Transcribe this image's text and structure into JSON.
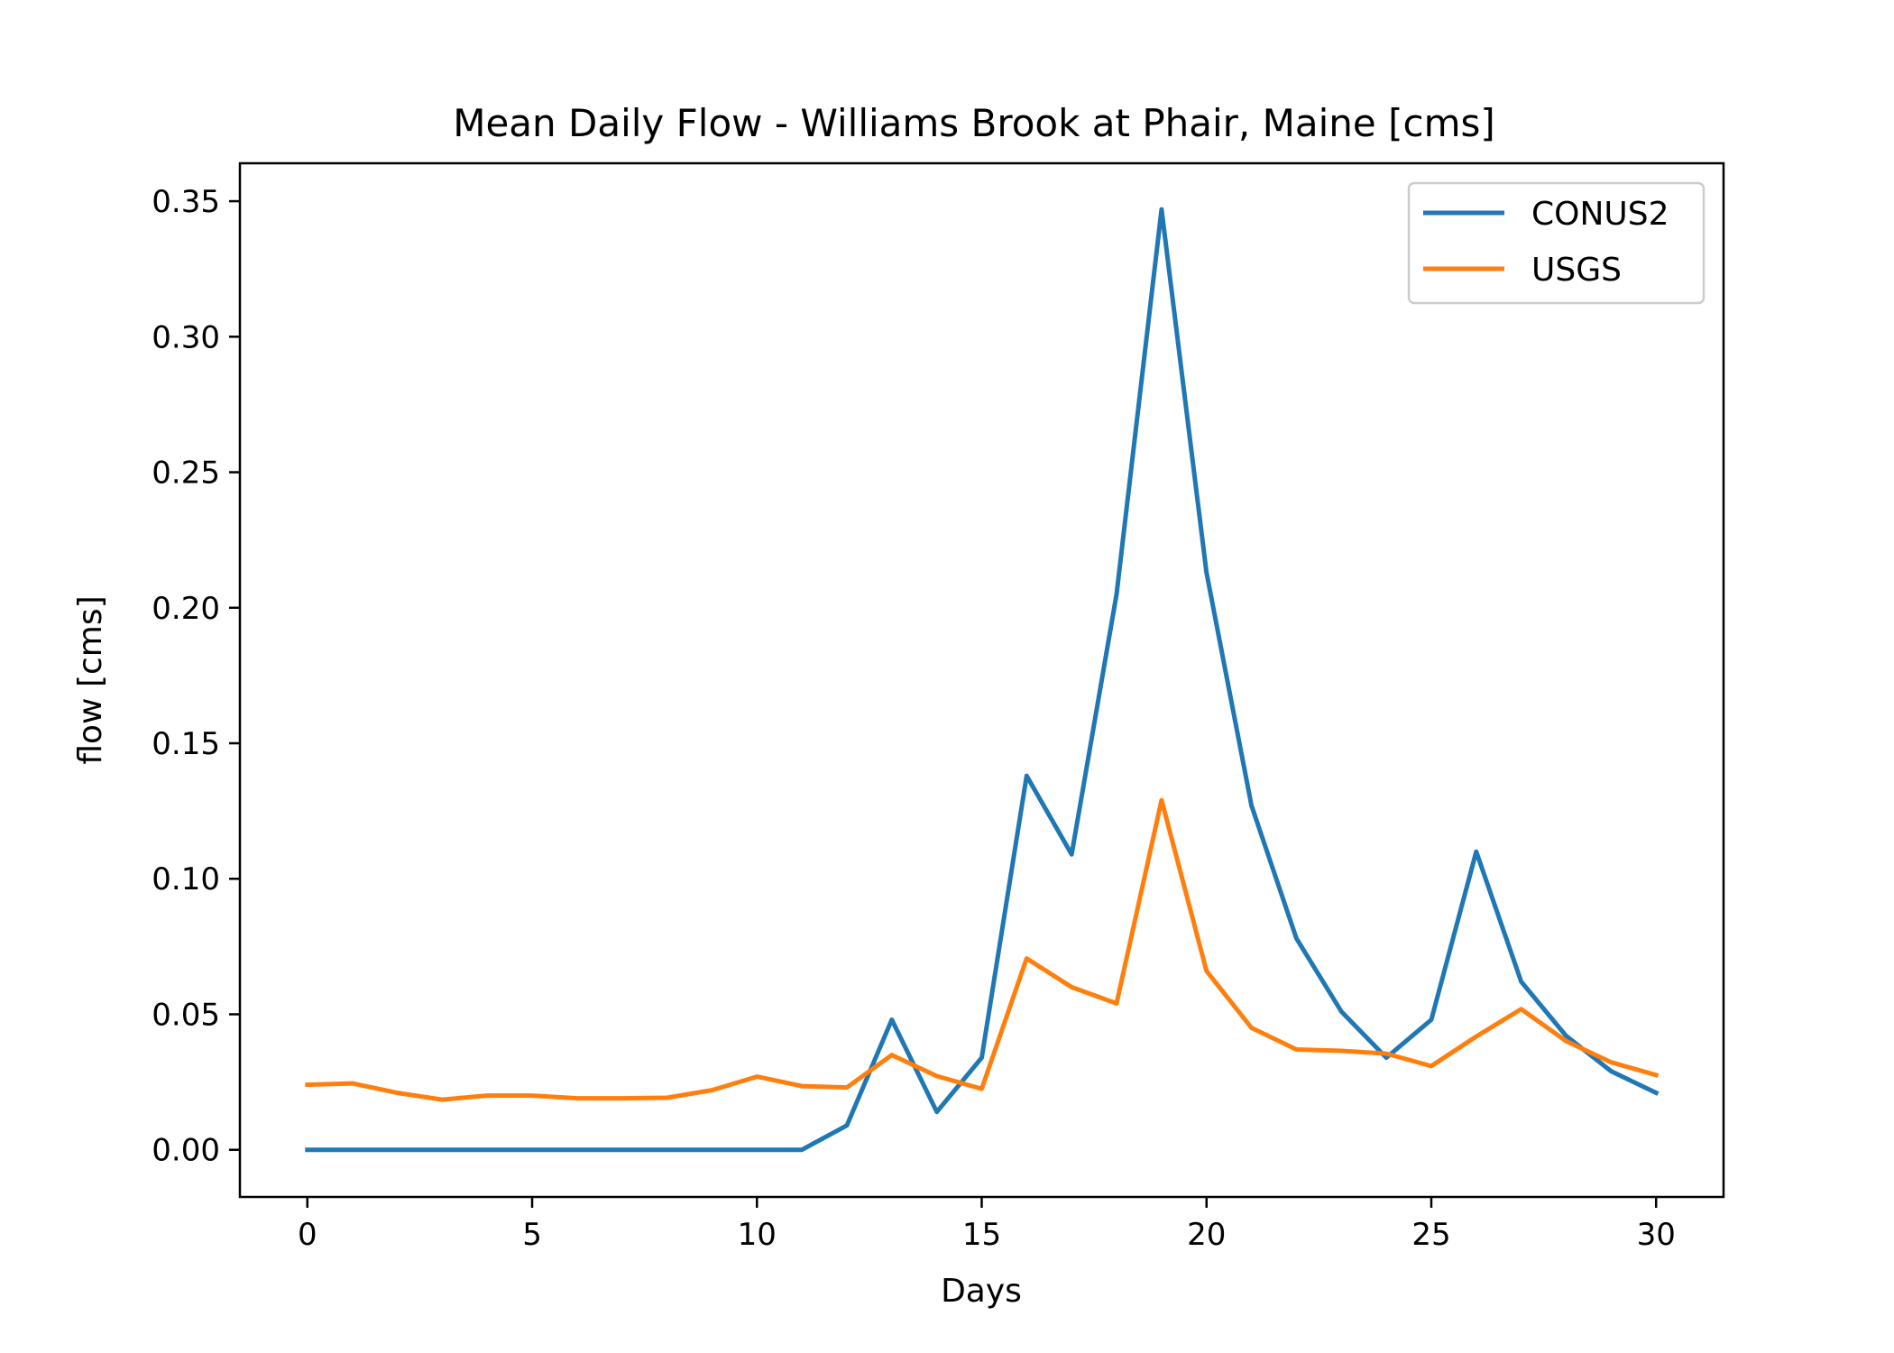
{
  "chart_data": {
    "type": "line",
    "title": "Mean Daily Flow - Williams Brook at Phair, Maine [cms]",
    "xlabel": "Days",
    "ylabel": "flow [cms]",
    "xlim": [
      -1.5,
      31.5
    ],
    "ylim": [
      -0.0174,
      0.364
    ],
    "xticks": [
      0,
      5,
      10,
      15,
      20,
      25,
      30
    ],
    "xtick_labels": [
      "0",
      "5",
      "10",
      "15",
      "20",
      "25",
      "30"
    ],
    "yticks": [
      0.0,
      0.05,
      0.1,
      0.15,
      0.2,
      0.25,
      0.3,
      0.35
    ],
    "ytick_labels": [
      "0.00",
      "0.05",
      "0.10",
      "0.15",
      "0.20",
      "0.25",
      "0.30",
      "0.35"
    ],
    "grid": false,
    "legend_position": "top-right",
    "x": [
      0,
      1,
      2,
      3,
      4,
      5,
      6,
      7,
      8,
      9,
      10,
      11,
      12,
      13,
      14,
      15,
      16,
      17,
      18,
      19,
      20,
      21,
      22,
      23,
      24,
      25,
      26,
      27,
      28,
      29,
      30
    ],
    "series": [
      {
        "name": "CONUS2",
        "color": "#1f77b4",
        "values": [
          0.0,
          0.0,
          0.0,
          0.0,
          0.0,
          0.0,
          0.0,
          0.0,
          0.0,
          0.0,
          0.0,
          0.0,
          0.009,
          0.048,
          0.014,
          0.034,
          0.138,
          0.109,
          0.205,
          0.347,
          0.213,
          0.127,
          0.078,
          0.051,
          0.034,
          0.048,
          0.11,
          0.062,
          0.042,
          0.029,
          0.021
        ]
      },
      {
        "name": "USGS",
        "color": "#ff7f0e",
        "values": [
          0.024,
          0.0245,
          0.021,
          0.0185,
          0.02,
          0.02,
          0.019,
          0.019,
          0.0192,
          0.022,
          0.027,
          0.0235,
          0.023,
          0.035,
          0.0272,
          0.0225,
          0.0706,
          0.06,
          0.054,
          0.129,
          0.066,
          0.045,
          0.037,
          0.0365,
          0.0355,
          0.0309,
          0.0418,
          0.0519,
          0.0401,
          0.0323,
          0.0276
        ]
      }
    ]
  }
}
